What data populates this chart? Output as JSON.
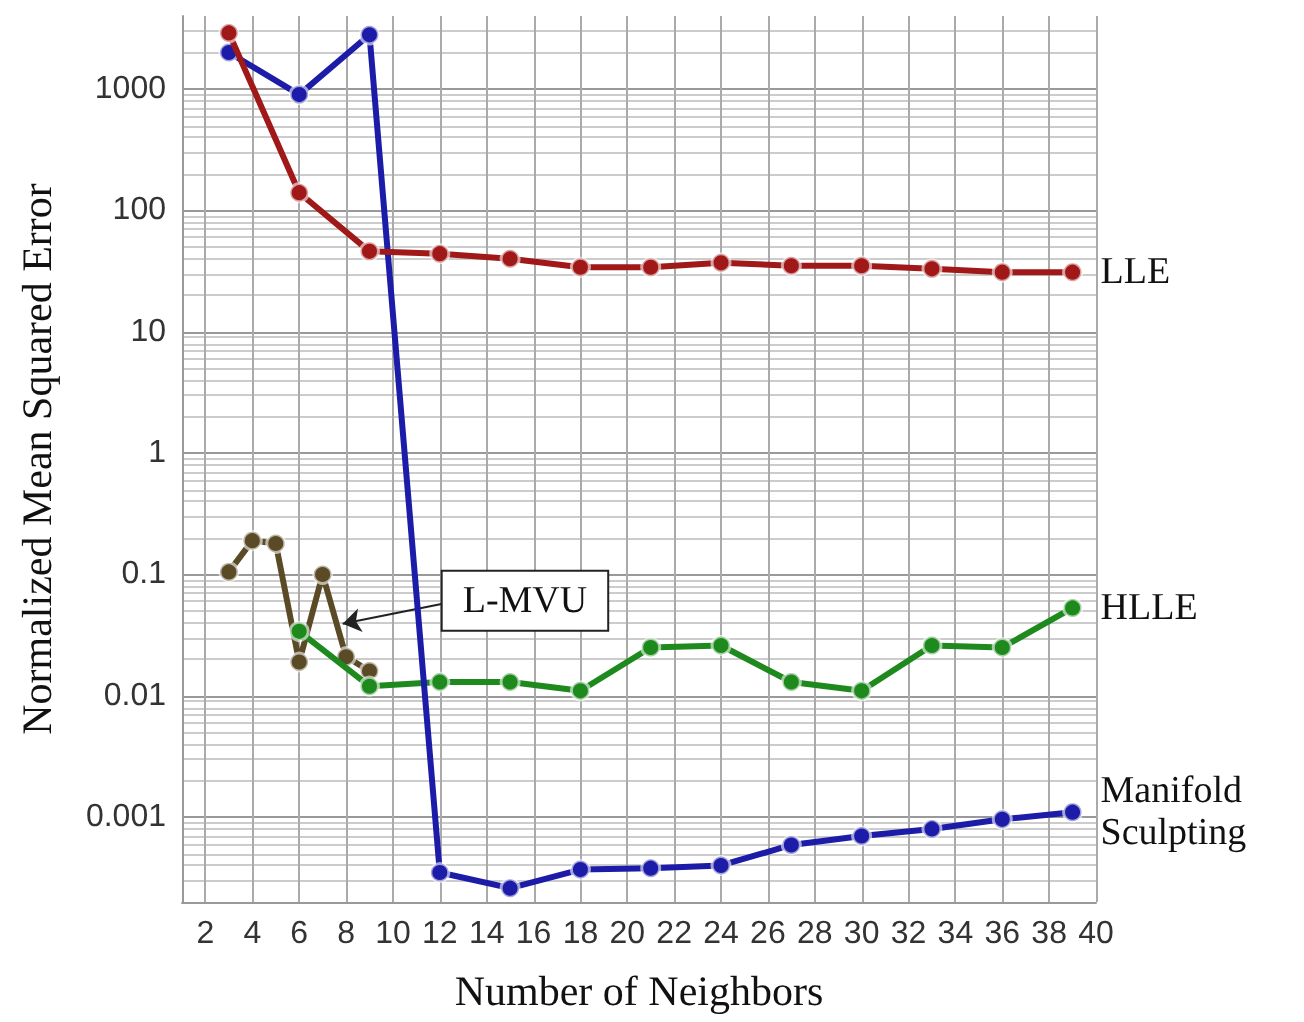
{
  "chart_data": {
    "type": "line",
    "xlabel": "Number of Neighbors",
    "ylabel": "Normalized Mean Squared Error",
    "log": "y",
    "grid": true,
    "legend": false,
    "marker": "circle",
    "line_style": "solid",
    "xlim": [
      1,
      40
    ],
    "xticks": [
      2,
      4,
      6,
      8,
      10,
      12,
      14,
      16,
      18,
      20,
      22,
      24,
      26,
      28,
      30,
      32,
      34,
      36,
      38,
      40
    ],
    "ylim": [
      0.0002,
      4000
    ],
    "yticks": [
      0.001,
      0.01,
      0.1,
      1,
      10,
      100,
      1000
    ],
    "series": [
      {
        "name": "LLE",
        "color": "#a01818",
        "x": [
          3,
          6,
          9,
          12,
          15,
          18,
          21,
          24,
          27,
          30,
          33,
          36,
          39
        ],
        "values": [
          2900,
          140,
          46,
          44,
          40,
          34,
          34,
          37,
          35,
          35,
          33,
          31,
          31
        ]
      },
      {
        "name": "Manifold Sculpting",
        "color": "#1c1ca8",
        "x": [
          3,
          6,
          9,
          12,
          15,
          18,
          21,
          24,
          27,
          30,
          33,
          36,
          39
        ],
        "values": [
          2000,
          900,
          2800,
          0.00035,
          0.00026,
          0.00037,
          0.00038,
          0.0004,
          0.00059,
          0.0007,
          0.0008,
          0.00096,
          0.0011
        ]
      },
      {
        "name": "HLLE",
        "color": "#1e8a1e",
        "x": [
          6,
          9,
          12,
          15,
          18,
          21,
          24,
          27,
          30,
          33,
          36,
          39
        ],
        "values": [
          0.034,
          0.012,
          0.013,
          0.013,
          0.011,
          0.025,
          0.026,
          0.013,
          0.011,
          0.026,
          0.025,
          0.053
        ]
      },
      {
        "name": "L-MVU",
        "color": "#5a4a26",
        "x": [
          3,
          4,
          5,
          6,
          7,
          8,
          9
        ],
        "values": [
          0.105,
          0.19,
          0.18,
          0.019,
          0.1,
          0.021,
          0.016
        ]
      }
    ]
  }
}
